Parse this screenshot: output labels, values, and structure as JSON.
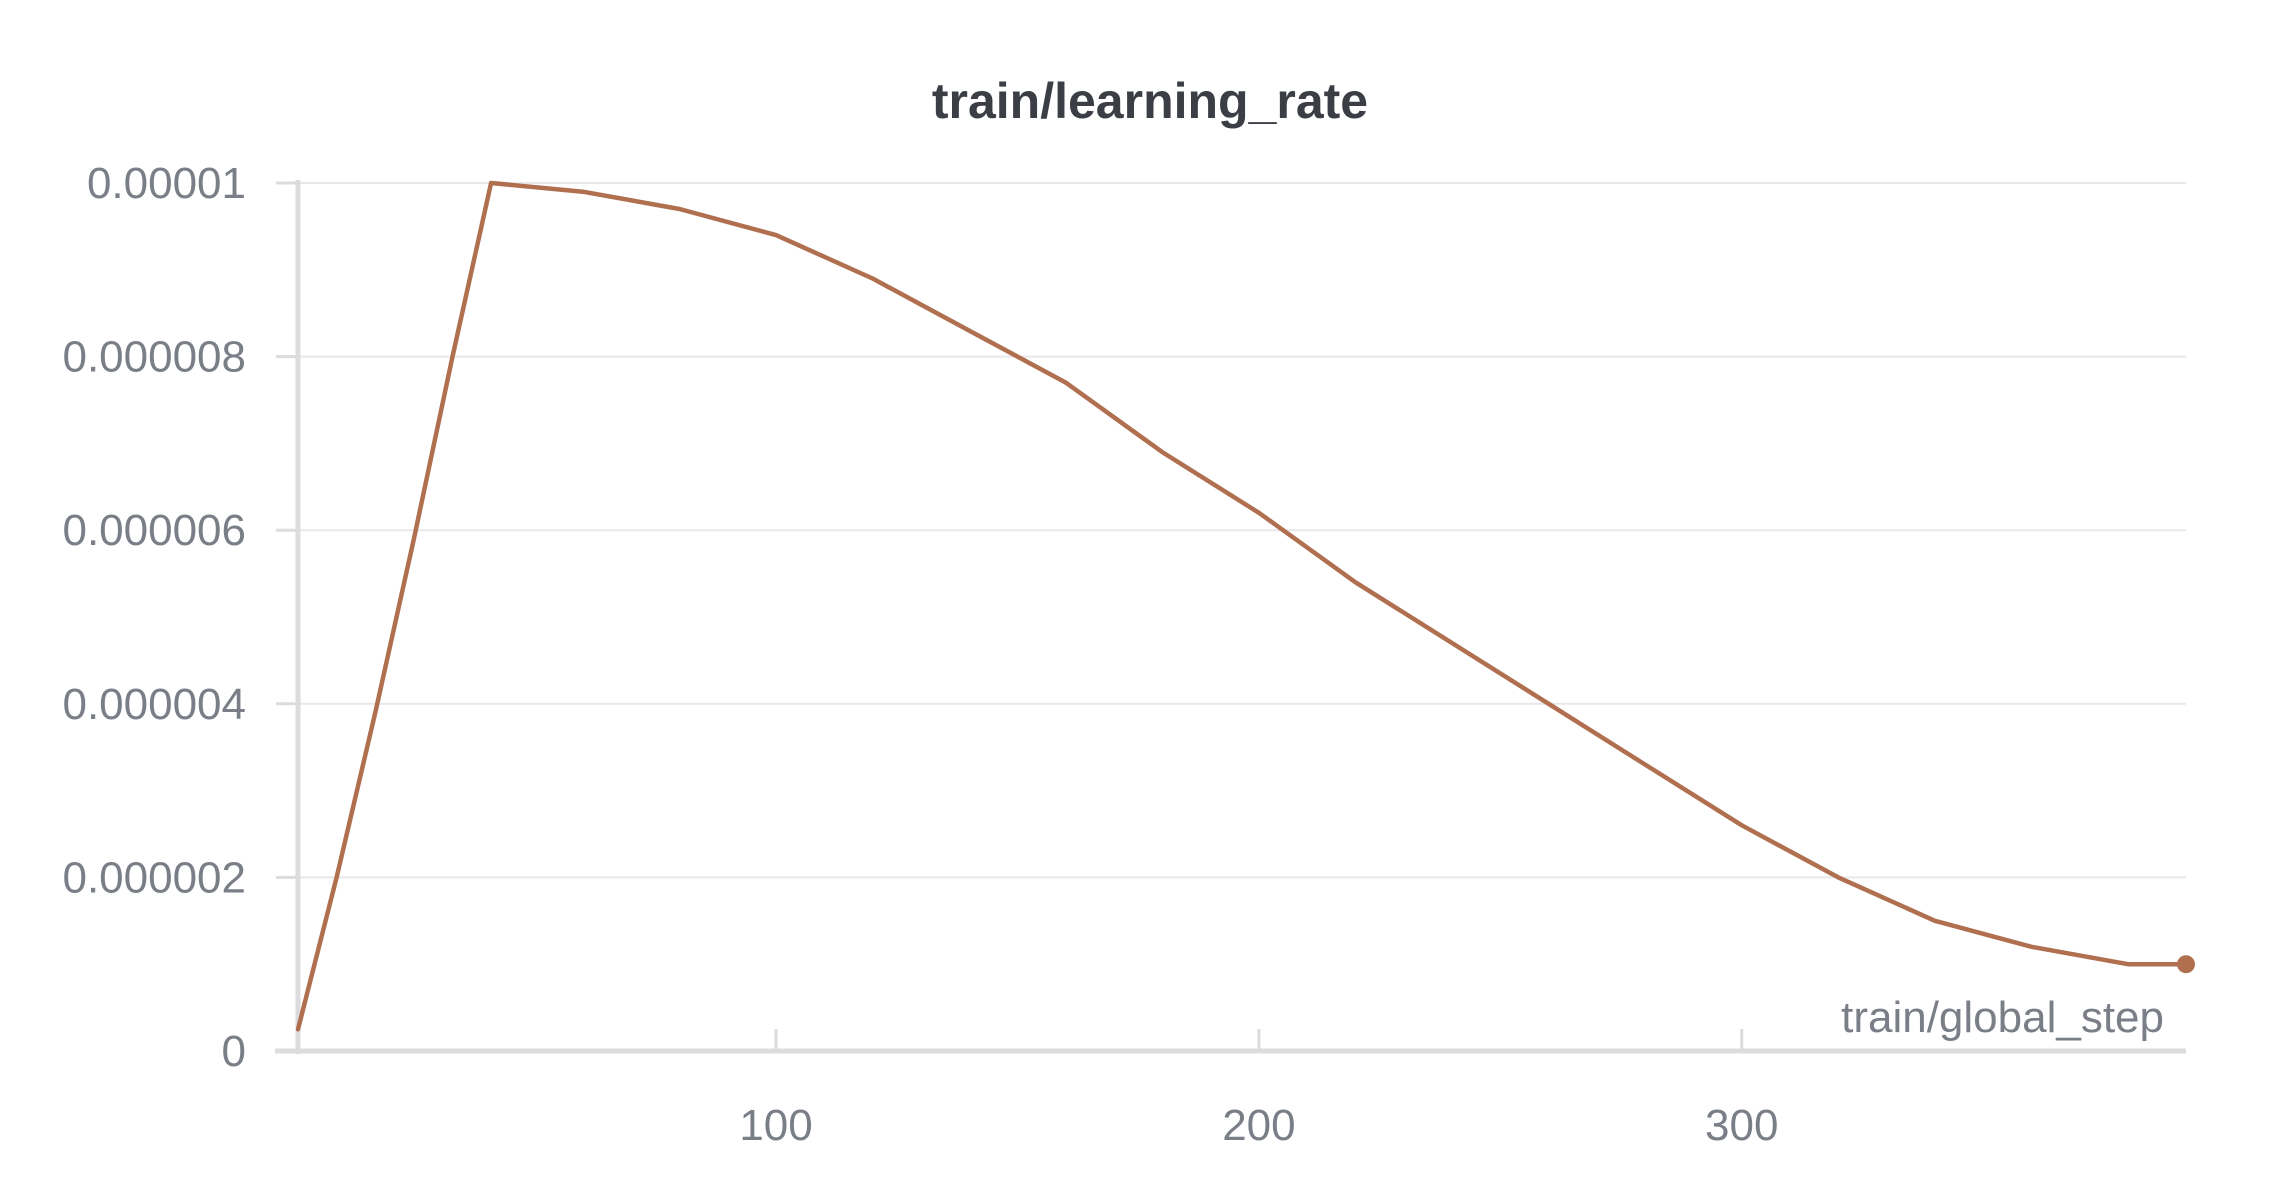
{
  "chart_data": {
    "type": "line",
    "title": "train/learning_rate",
    "xlabel": "train/global_step",
    "ylabel": "",
    "xlim": [
      1,
      392
    ],
    "ylim": [
      0,
      1e-05
    ],
    "x_ticks": [
      100,
      200,
      300
    ],
    "x_tick_labels": [
      "100",
      "200",
      "300"
    ],
    "y_ticks": [
      0,
      2e-06,
      4e-06,
      6e-06,
      8e-06,
      1e-05
    ],
    "y_tick_labels": [
      "0",
      "0.000002",
      "0.000004",
      "0.000006",
      "0.000008",
      "0.00001"
    ],
    "grid": true,
    "legend": "none",
    "series": [
      {
        "color": "#b07050",
        "x": [
          1,
          9,
          17,
          25,
          33,
          41,
          60,
          80,
          100,
          120,
          140,
          160,
          180,
          200,
          220,
          240,
          260,
          280,
          300,
          320,
          340,
          360,
          380,
          392
        ],
        "y": [
          2.5e-07,
          2e-06,
          3.9e-06,
          5.9e-06,
          8e-06,
          1e-05,
          9.9e-06,
          9.7e-06,
          9.4e-06,
          8.9e-06,
          8.3e-06,
          7.7e-06,
          6.9e-06,
          6.2e-06,
          5.4e-06,
          4.7e-06,
          4e-06,
          3.3e-06,
          2.6e-06,
          2e-06,
          1.5e-06,
          1.2e-06,
          1e-06,
          1e-06
        ]
      }
    ]
  }
}
